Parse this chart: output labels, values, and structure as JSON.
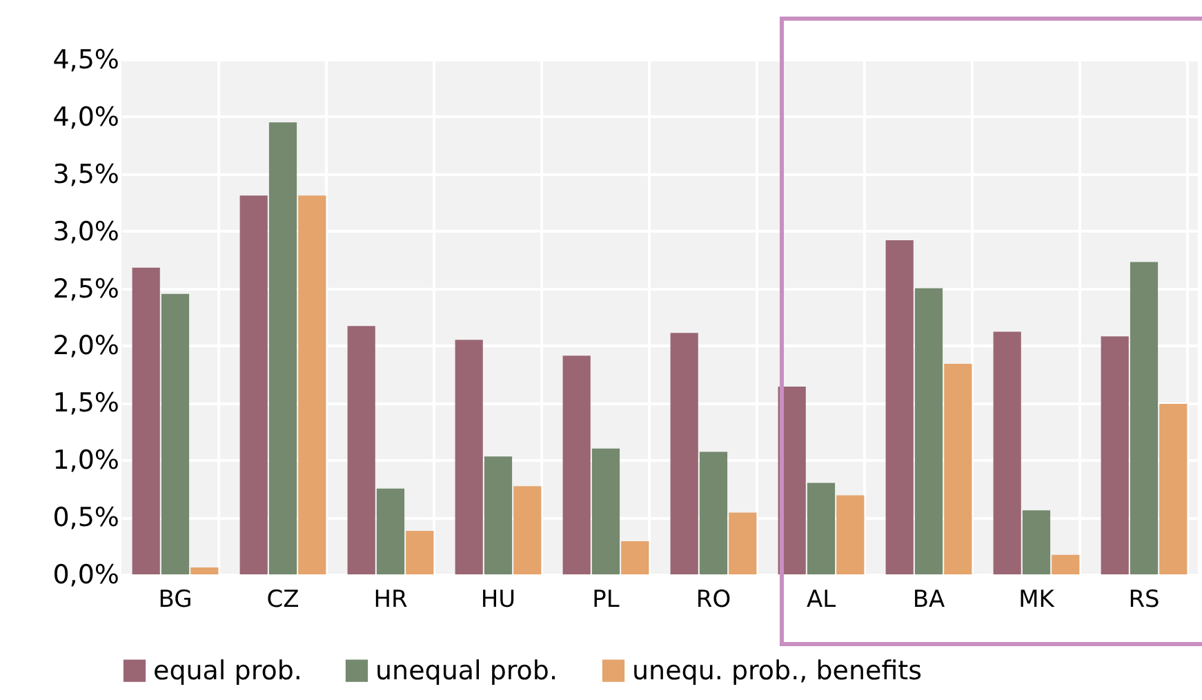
{
  "chart_data": {
    "type": "bar",
    "categories": [
      "BG",
      "CZ",
      "HR",
      "HU",
      "PL",
      "RO",
      "AL",
      "BA",
      "MK",
      "RS"
    ],
    "series": [
      {
        "name": "equal prob.",
        "color": "#9a6674",
        "values": [
          2.68,
          3.31,
          2.17,
          2.05,
          1.91,
          2.11,
          1.64,
          2.92,
          2.12,
          2.08
        ]
      },
      {
        "name": "unequal prob.",
        "color": "#74896e",
        "values": [
          2.45,
          3.95,
          0.75,
          1.03,
          1.1,
          1.07,
          0.8,
          2.5,
          0.56,
          2.73
        ]
      },
      {
        "name": "unequ. prob., benefits",
        "color": "#e4a46c",
        "values": [
          0.06,
          3.31,
          0.38,
          0.77,
          0.29,
          0.54,
          0.69,
          1.84,
          0.17,
          1.49
        ]
      }
    ],
    "ylim": [
      0,
      4.5
    ],
    "yticks": [
      {
        "value": 0,
        "label": "0,0%"
      },
      {
        "value": 0.5,
        "label": "0,5%"
      },
      {
        "value": 1,
        "label": "1,0%"
      },
      {
        "value": 1.5,
        "label": "1,5%"
      },
      {
        "value": 2,
        "label": "2,0%"
      },
      {
        "value": 2.5,
        "label": "2,5%"
      },
      {
        "value": 3,
        "label": "3,0%"
      },
      {
        "value": 3.5,
        "label": "3,5%"
      },
      {
        "value": 4,
        "label": "4,0%"
      },
      {
        "value": 4.5,
        "label": "4,5%"
      }
    ],
    "grid": true,
    "legend": "bottom"
  }
}
